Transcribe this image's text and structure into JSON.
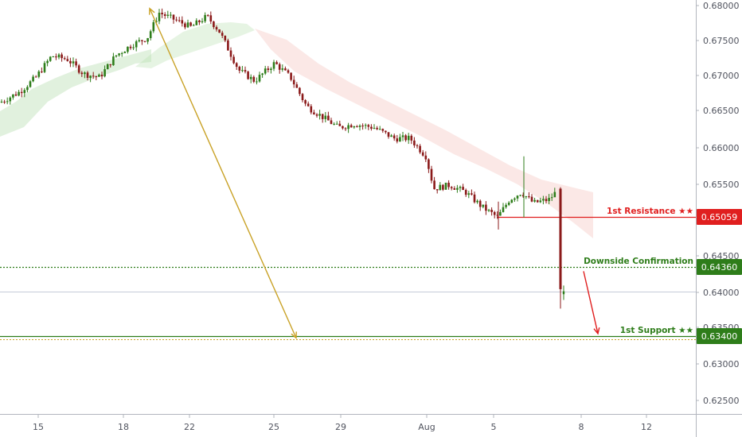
{
  "chart_data": {
    "type": "candlestick",
    "y_axis": {
      "ticks": [
        "0.68000",
        "0.67500",
        "0.67000",
        "0.66500",
        "0.66000",
        "0.65500",
        "0.64500",
        "0.64000",
        "0.63500",
        "0.63000",
        "0.62500"
      ],
      "range": [
        0.6205,
        0.6805
      ],
      "position": "right"
    },
    "x_axis": {
      "ticks": [
        "15",
        "18",
        "22",
        "25",
        "29",
        "Aug",
        "5",
        "8",
        "12"
      ]
    },
    "price_path": [
      [
        0,
        0.6665
      ],
      [
        25,
        0.668
      ],
      [
        45,
        0.67
      ],
      [
        65,
        0.673
      ],
      [
        85,
        0.6725
      ],
      [
        105,
        0.6705
      ],
      [
        125,
        0.67
      ],
      [
        145,
        0.673
      ],
      [
        165,
        0.6745
      ],
      [
        185,
        0.6755
      ],
      [
        200,
        0.679
      ],
      [
        220,
        0.678
      ],
      [
        240,
        0.677
      ],
      [
        260,
        0.6785
      ],
      [
        275,
        0.6765
      ],
      [
        300,
        0.671
      ],
      [
        320,
        0.6695
      ],
      [
        345,
        0.672
      ],
      [
        365,
        0.67
      ],
      [
        385,
        0.666
      ],
      [
        405,
        0.6645
      ],
      [
        425,
        0.663
      ],
      [
        445,
        0.6635
      ],
      [
        470,
        0.663
      ],
      [
        495,
        0.6615
      ],
      [
        515,
        0.6615
      ],
      [
        535,
        0.659
      ],
      [
        545,
        0.6545
      ],
      [
        565,
        0.655
      ],
      [
        585,
        0.654
      ],
      [
        605,
        0.652
      ],
      [
        625,
        0.6505
      ],
      [
        640,
        0.653
      ],
      [
        655,
        0.654
      ],
      [
        670,
        0.6525
      ],
      [
        690,
        0.653
      ],
      [
        702,
        0.6545
      ]
    ],
    "drop_candle": {
      "open": 0.6545,
      "close": 0.6405,
      "high": 0.6547,
      "low": 0.6378
    },
    "last_candle": {
      "open": 0.6398,
      "close": 0.6402,
      "high": 0.641,
      "low": 0.639
    },
    "current_price": 0.6402,
    "ichimoku_cloud": [
      {
        "from": 0,
        "to": 190,
        "bias": "bullish",
        "color": "#a8d8a0"
      },
      {
        "from": 190,
        "to": 320,
        "bias": "bullish",
        "color": "#b8e0b0"
      },
      {
        "from": 320,
        "to": 750,
        "bias": "bearish",
        "color": "#f4b6b2"
      }
    ],
    "levels": [
      {
        "label": "1st Resistance ★★",
        "value": "0.65059",
        "price": 0.65059,
        "color": "#e01f1f",
        "style": "solid"
      },
      {
        "label": "Downside Confirmation",
        "value": "0.64360",
        "price": 0.6436,
        "color": "#2e7d1a",
        "style": "dotted"
      },
      {
        "label": "1st Support ★★",
        "value": "0.63400",
        "price": 0.634,
        "color": "#2e7d1a",
        "style": "solid"
      }
    ],
    "arrows": [
      {
        "from": [
          188,
          0.6796
        ],
        "to": [
          372,
          0.6337
        ],
        "color": "#c9a227"
      },
      {
        "from": [
          733,
          0.643
        ],
        "to": [
          751,
          0.6343
        ],
        "color": "#e01f1f"
      }
    ]
  }
}
